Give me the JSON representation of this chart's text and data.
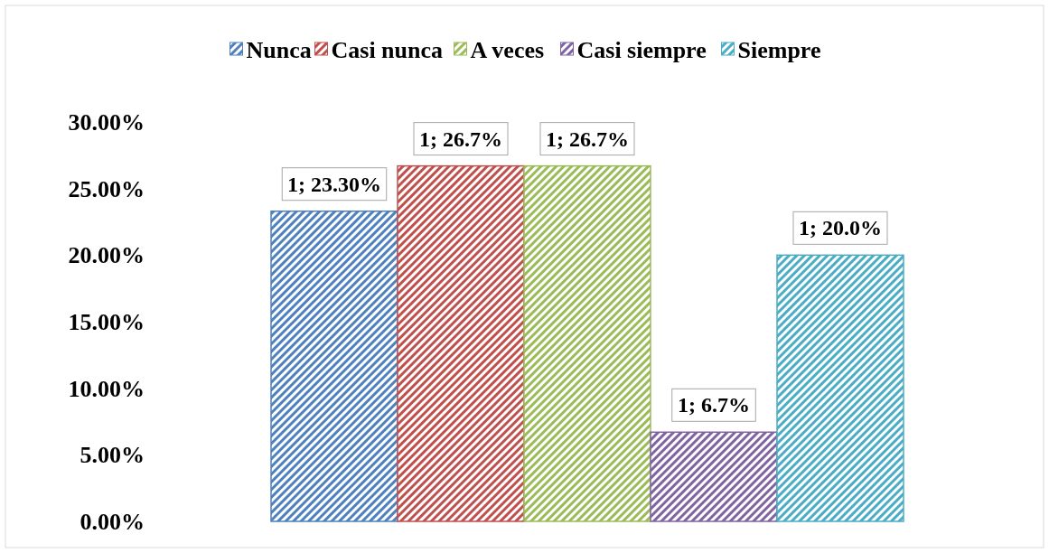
{
  "chart_data": {
    "type": "bar",
    "categories": [
      null
    ],
    "series": [
      {
        "name": "Nunca",
        "color": "#4f81bd",
        "values": [
          23.3
        ],
        "value_labels": [
          "1; 23.30%"
        ]
      },
      {
        "name": "Casi nunca",
        "color": "#c0504d",
        "values": [
          26.7
        ],
        "value_labels": [
          "1; 26.7%"
        ]
      },
      {
        "name": "A veces",
        "color": "#9bbb59",
        "values": [
          26.7
        ],
        "value_labels": [
          "1; 26.7%"
        ]
      },
      {
        "name": "Casi siempre",
        "color": "#8064a2",
        "values": [
          6.7
        ],
        "value_labels": [
          "1; 6.7%"
        ]
      },
      {
        "name": "Siempre",
        "color": "#4bacc6",
        "values": [
          20.0
        ],
        "value_labels": [
          "1; 20.0%"
        ]
      }
    ],
    "ylim": [
      0,
      30
    ],
    "yticks": [
      {
        "value": 0,
        "label": "0.00%"
      },
      {
        "value": 5,
        "label": "5.00%"
      },
      {
        "value": 10,
        "label": "10.00%"
      },
      {
        "value": 15,
        "label": "15.00%"
      },
      {
        "value": 20,
        "label": "20.00%"
      },
      {
        "value": 25,
        "label": "25.00%"
      },
      {
        "value": 30,
        "label": "30.00%"
      }
    ],
    "grid": false,
    "legend": "top"
  }
}
